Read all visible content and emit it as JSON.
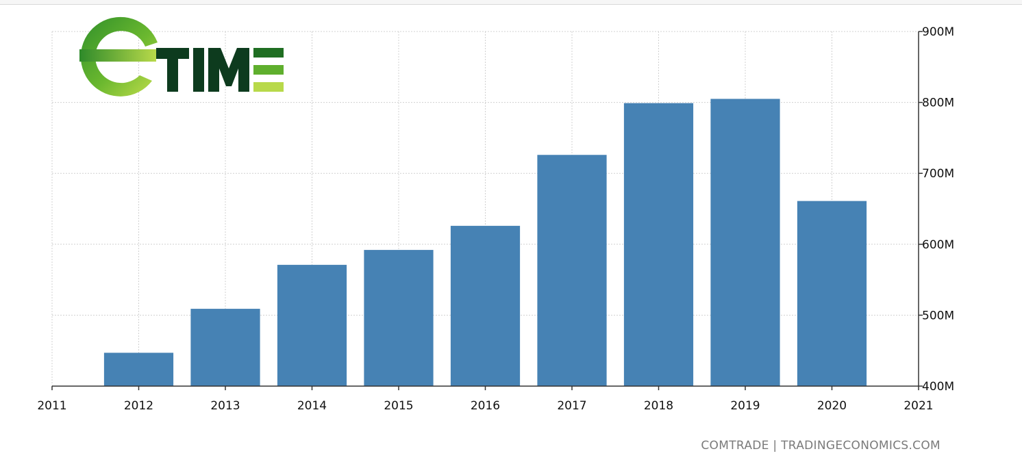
{
  "logo": {
    "text": "TIME",
    "colors": {
      "dark": "#0d3b1e",
      "green": "#5faf2d",
      "lime": "#b8d94a"
    }
  },
  "source": "COMTRADE | TRADINGECONOMICS.COM",
  "colors": {
    "bar": "#4682b4",
    "grid": "#d0d0d0",
    "axis": "#333333"
  },
  "chart_data": {
    "type": "bar",
    "categories": [
      "2012",
      "2013",
      "2014",
      "2015",
      "2016",
      "2017",
      "2018",
      "2019",
      "2020"
    ],
    "values": [
      447,
      509,
      571,
      592,
      626,
      726,
      799,
      805,
      661
    ],
    "value_unit": "M",
    "x_ticks": [
      "2011",
      "2012",
      "2013",
      "2014",
      "2015",
      "2016",
      "2017",
      "2018",
      "2019",
      "2020",
      "2021"
    ],
    "y_ticks": [
      "400M",
      "500M",
      "600M",
      "700M",
      "800M",
      "900M"
    ],
    "y_tick_values": [
      400,
      500,
      600,
      700,
      800,
      900
    ],
    "ylim": [
      400,
      900
    ],
    "xlim": [
      2011,
      2021
    ],
    "grid": true,
    "y_axis_position": "right"
  }
}
